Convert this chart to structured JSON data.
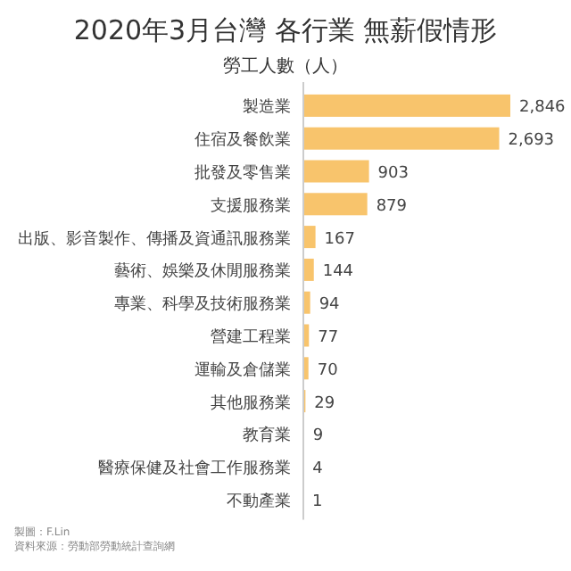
{
  "chart_data": {
    "type": "bar",
    "orientation": "horizontal",
    "title": "2020年3月台灣 各行業 無薪假情形",
    "subtitle": "勞工人數（人）",
    "categories": [
      "製造業",
      "住宿及餐飲業",
      "批發及零售業",
      "支援服務業",
      "出版、影音製作、傳播及資通訊服務業",
      "藝術、娛樂及休閒服務業",
      "專業、科學及技術服務業",
      "營建工程業",
      "運輸及倉儲業",
      "其他服務業",
      "教育業",
      "醫療保健及社會工作服務業",
      "不動產業"
    ],
    "values": [
      2846,
      2693,
      903,
      879,
      167,
      144,
      94,
      77,
      70,
      29,
      9,
      4,
      1
    ],
    "value_labels": [
      "2,846",
      "2,693",
      "903",
      "879",
      "167",
      "144",
      "94",
      "77",
      "70",
      "29",
      "9",
      "4",
      "1"
    ],
    "color": "#f8c46c",
    "annotations": [
      "製圖：F.Lin",
      "資料來源：勞動部勞動統計查詢網"
    ]
  }
}
